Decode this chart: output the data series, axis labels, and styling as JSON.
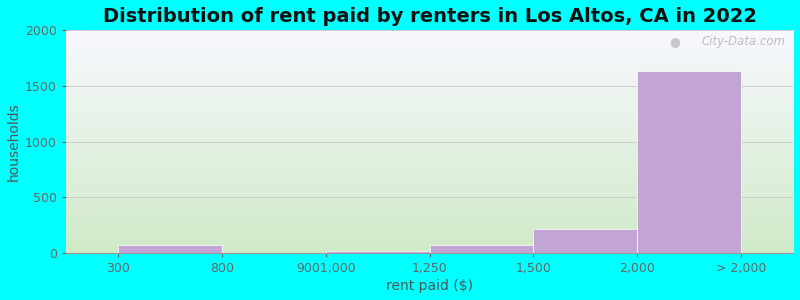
{
  "title": "Distribution of rent paid by renters in Los Altos, CA in 2022",
  "xlabel": "rent paid ($)",
  "ylabel": "households",
  "x_tick_labels": [
    "300",
    "800",
    "9001,000",
    "1,250",
    "1,500",
    "2,000",
    "> 2,000"
  ],
  "x_tick_positions": [
    0,
    1,
    2,
    3,
    4,
    5,
    6
  ],
  "bar_heights": [
    75,
    0,
    15,
    75,
    215,
    1630
  ],
  "bar_color": "#c2a5d4",
  "ylim": [
    0,
    2000
  ],
  "yticks": [
    0,
    500,
    1000,
    1500,
    2000
  ],
  "background_outer": "#00ffff",
  "background_inner_top": "#f8f8ff",
  "background_inner_bottom": "#d0eac8",
  "grid_color": "#cccccc",
  "title_fontsize": 14,
  "label_fontsize": 10,
  "tick_fontsize": 9,
  "watermark": "City-Data.com",
  "watermark_icon": "●"
}
